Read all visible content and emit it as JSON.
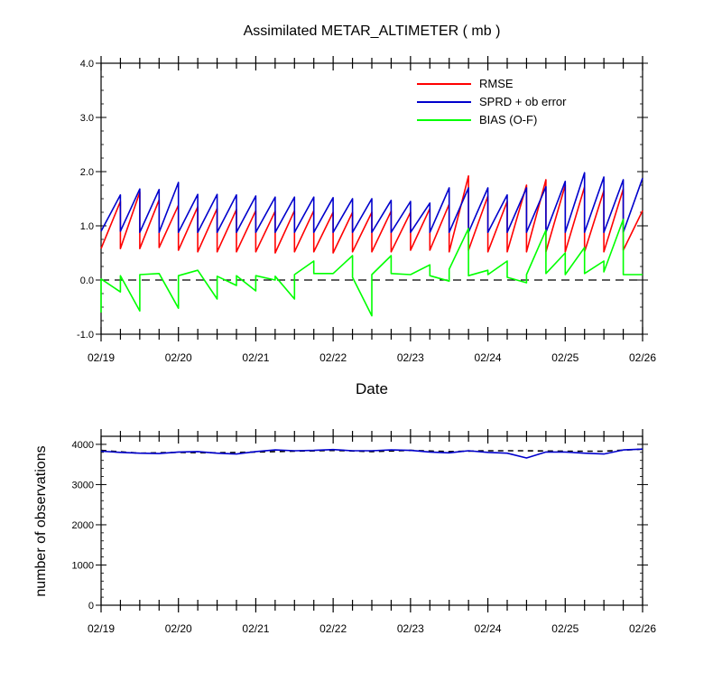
{
  "colors": {
    "rmse": "#ff0000",
    "sprd": "#0000cc",
    "bias": "#00ff00",
    "zero": "#000000",
    "expected": "#000000"
  },
  "chart_data": [
    {
      "type": "line",
      "title": "Assimilated METAR_ALTIMETER ( mb )",
      "xlabel": "Date",
      "ylabel": "",
      "x_ticks": [
        "02/19",
        "02/20",
        "02/21",
        "02/22",
        "02/23",
        "02/24",
        "02/25",
        "02/26"
      ],
      "xlim": [
        0,
        7
      ],
      "ylim": [
        -1.0,
        4.0
      ],
      "y_ticks": [
        "-1.0",
        "0.0",
        "1.0",
        "2.0",
        "3.0",
        "4.0"
      ],
      "y_tick_values": [
        -1,
        0,
        1,
        2,
        3,
        4
      ],
      "legend_position": "top-right",
      "reference_line": {
        "y": 0,
        "style": "dashed"
      },
      "x_unit": "days since 02/19 00Z",
      "series": [
        {
          "name": "RMSE",
          "color_key": "rmse",
          "sawtooth": true,
          "points": [
            [
              0,
              0.58
            ],
            [
              0.25,
              1.45
            ],
            [
              0.25,
              0.58
            ],
            [
              0.5,
              1.62
            ],
            [
              0.5,
              0.58
            ],
            [
              0.75,
              1.48
            ],
            [
              0.75,
              0.6
            ],
            [
              1,
              1.38
            ],
            [
              1,
              0.55
            ],
            [
              1.25,
              1.35
            ],
            [
              1.25,
              0.52
            ],
            [
              1.5,
              1.32
            ],
            [
              1.5,
              0.52
            ],
            [
              1.75,
              1.3
            ],
            [
              1.75,
              0.52
            ],
            [
              2,
              1.28
            ],
            [
              2,
              0.52
            ],
            [
              2.25,
              1.27
            ],
            [
              2.25,
              0.5
            ],
            [
              2.5,
              1.28
            ],
            [
              2.5,
              0.52
            ],
            [
              2.75,
              1.28
            ],
            [
              2.75,
              0.52
            ],
            [
              3,
              1.25
            ],
            [
              3,
              0.5
            ],
            [
              3.25,
              1.25
            ],
            [
              3.25,
              0.52
            ],
            [
              3.5,
              1.25
            ],
            [
              3.5,
              0.52
            ],
            [
              3.75,
              1.27
            ],
            [
              3.75,
              0.52
            ],
            [
              4,
              1.25
            ],
            [
              4,
              0.55
            ],
            [
              4.25,
              1.32
            ],
            [
              4.25,
              0.55
            ],
            [
              4.5,
              1.4
            ],
            [
              4.5,
              0.52
            ],
            [
              4.75,
              1.92
            ],
            [
              4.75,
              0.55
            ],
            [
              5,
              1.55
            ],
            [
              5,
              0.52
            ],
            [
              5.25,
              1.45
            ],
            [
              5.25,
              0.52
            ],
            [
              5.5,
              1.75
            ],
            [
              5.5,
              0.52
            ],
            [
              5.75,
              1.85
            ],
            [
              5.75,
              0.52
            ],
            [
              6,
              1.75
            ],
            [
              6,
              0.52
            ],
            [
              6.25,
              1.72
            ],
            [
              6.25,
              0.52
            ],
            [
              6.5,
              1.65
            ],
            [
              6.5,
              0.52
            ],
            [
              6.75,
              1.68
            ],
            [
              6.75,
              0.55
            ],
            [
              7,
              1.28
            ]
          ]
        },
        {
          "name": "SPRD + ob error",
          "color_key": "sprd",
          "sawtooth": true,
          "points": [
            [
              0,
              0.9
            ],
            [
              0.25,
              1.57
            ],
            [
              0.25,
              0.9
            ],
            [
              0.5,
              1.68
            ],
            [
              0.5,
              0.88
            ],
            [
              0.75,
              1.67
            ],
            [
              0.75,
              0.88
            ],
            [
              1,
              1.8
            ],
            [
              1,
              0.88
            ],
            [
              1.25,
              1.58
            ],
            [
              1.25,
              0.88
            ],
            [
              1.5,
              1.58
            ],
            [
              1.5,
              0.88
            ],
            [
              1.75,
              1.57
            ],
            [
              1.75,
              0.88
            ],
            [
              2,
              1.55
            ],
            [
              2,
              0.88
            ],
            [
              2.25,
              1.53
            ],
            [
              2.25,
              0.88
            ],
            [
              2.5,
              1.53
            ],
            [
              2.5,
              0.88
            ],
            [
              2.75,
              1.53
            ],
            [
              2.75,
              0.88
            ],
            [
              3,
              1.52
            ],
            [
              3,
              0.88
            ],
            [
              3.25,
              1.5
            ],
            [
              3.25,
              0.88
            ],
            [
              3.5,
              1.5
            ],
            [
              3.5,
              0.88
            ],
            [
              3.75,
              1.47
            ],
            [
              3.75,
              0.88
            ],
            [
              4,
              1.45
            ],
            [
              4,
              0.88
            ],
            [
              4.25,
              1.42
            ],
            [
              4.25,
              0.88
            ],
            [
              4.5,
              1.7
            ],
            [
              4.5,
              0.88
            ],
            [
              4.75,
              1.7
            ],
            [
              4.75,
              0.88
            ],
            [
              5,
              1.7
            ],
            [
              5,
              0.88
            ],
            [
              5.25,
              1.57
            ],
            [
              5.25,
              0.88
            ],
            [
              5.5,
              1.7
            ],
            [
              5.5,
              0.88
            ],
            [
              5.75,
              1.72
            ],
            [
              5.75,
              0.88
            ],
            [
              6,
              1.82
            ],
            [
              6,
              0.88
            ],
            [
              6.25,
              1.98
            ],
            [
              6.25,
              0.88
            ],
            [
              6.5,
              1.9
            ],
            [
              6.5,
              0.88
            ],
            [
              6.75,
              1.85
            ],
            [
              6.75,
              0.88
            ],
            [
              7,
              1.88
            ]
          ]
        },
        {
          "name": "BIAS (O-F)",
          "color_key": "bias",
          "sawtooth": false,
          "points": [
            [
              0,
              -0.6
            ],
            [
              0,
              0.02
            ],
            [
              0.25,
              -0.22
            ],
            [
              0.25,
              0.08
            ],
            [
              0.5,
              -0.57
            ],
            [
              0.5,
              0.1
            ],
            [
              0.75,
              0.12
            ],
            [
              1,
              -0.52
            ],
            [
              1,
              0.08
            ],
            [
              1.25,
              0.18
            ],
            [
              1.5,
              -0.35
            ],
            [
              1.5,
              0.07
            ],
            [
              1.75,
              -0.1
            ],
            [
              1.75,
              0.08
            ],
            [
              2,
              -0.2
            ],
            [
              2,
              0.08
            ],
            [
              2.25,
              0.0
            ],
            [
              2.25,
              0.07
            ],
            [
              2.5,
              -0.35
            ],
            [
              2.5,
              0.1
            ],
            [
              2.75,
              0.35
            ],
            [
              2.75,
              0.12
            ],
            [
              3,
              0.12
            ],
            [
              3.25,
              0.45
            ],
            [
              3.25,
              0.05
            ],
            [
              3.5,
              -0.66
            ],
            [
              3.5,
              0.1
            ],
            [
              3.75,
              0.45
            ],
            [
              3.75,
              0.12
            ],
            [
              4,
              0.1
            ],
            [
              4.25,
              0.28
            ],
            [
              4.25,
              0.08
            ],
            [
              4.5,
              -0.02
            ],
            [
              4.5,
              0.2
            ],
            [
              4.75,
              0.95
            ],
            [
              4.75,
              0.08
            ],
            [
              5,
              0.18
            ],
            [
              5,
              0.1
            ],
            [
              5.25,
              0.35
            ],
            [
              5.25,
              0.05
            ],
            [
              5.5,
              -0.05
            ],
            [
              5.5,
              0.1
            ],
            [
              5.75,
              0.92
            ],
            [
              5.75,
              0.12
            ],
            [
              6,
              0.5
            ],
            [
              6,
              0.1
            ],
            [
              6.25,
              0.6
            ],
            [
              6.25,
              0.12
            ],
            [
              6.5,
              0.35
            ],
            [
              6.5,
              0.15
            ],
            [
              6.75,
              1.12
            ],
            [
              6.75,
              0.1
            ],
            [
              7,
              0.1
            ]
          ]
        }
      ]
    },
    {
      "type": "line",
      "title": "",
      "xlabel": "",
      "ylabel": "number of observations",
      "x_ticks": [
        "02/19",
        "02/20",
        "02/21",
        "02/22",
        "02/23",
        "02/24",
        "02/25",
        "02/26"
      ],
      "xlim": [
        0,
        7
      ],
      "ylim": [
        0,
        4200
      ],
      "y_ticks": [
        "0",
        "1000",
        "2000",
        "3000",
        "4000"
      ],
      "y_tick_values": [
        0,
        1000,
        2000,
        3000,
        4000
      ],
      "x_unit": "days since 02/19 00Z",
      "series": [
        {
          "name": "",
          "color_key": "expected",
          "style": "dashed",
          "points": [
            [
              0,
              3850
            ],
            [
              0.5,
              3780
            ],
            [
              1,
              3800
            ],
            [
              1.5,
              3790
            ],
            [
              2,
              3810
            ],
            [
              2.5,
              3830
            ],
            [
              3,
              3850
            ],
            [
              3.5,
              3820
            ],
            [
              4,
              3850
            ],
            [
              4.5,
              3820
            ],
            [
              5,
              3840
            ],
            [
              5.5,
              3840
            ],
            [
              6,
              3830
            ],
            [
              6.5,
              3830
            ],
            [
              7,
              3880
            ]
          ]
        },
        {
          "name": "",
          "color_key": "sprd",
          "style": "solid",
          "points": [
            [
              0,
              3830
            ],
            [
              0.25,
              3800
            ],
            [
              0.5,
              3780
            ],
            [
              0.75,
              3770
            ],
            [
              1,
              3810
            ],
            [
              1.25,
              3820
            ],
            [
              1.5,
              3780
            ],
            [
              1.75,
              3760
            ],
            [
              2,
              3820
            ],
            [
              2.25,
              3860
            ],
            [
              2.5,
              3840
            ],
            [
              2.75,
              3850
            ],
            [
              3,
              3870
            ],
            [
              3.25,
              3840
            ],
            [
              3.5,
              3840
            ],
            [
              3.75,
              3860
            ],
            [
              4,
              3850
            ],
            [
              4.25,
              3810
            ],
            [
              4.5,
              3790
            ],
            [
              4.75,
              3840
            ],
            [
              5,
              3800
            ],
            [
              5.25,
              3780
            ],
            [
              5.5,
              3660
            ],
            [
              5.75,
              3810
            ],
            [
              6,
              3810
            ],
            [
              6.25,
              3780
            ],
            [
              6.5,
              3760
            ],
            [
              6.75,
              3860
            ],
            [
              7,
              3880
            ]
          ]
        }
      ]
    }
  ]
}
